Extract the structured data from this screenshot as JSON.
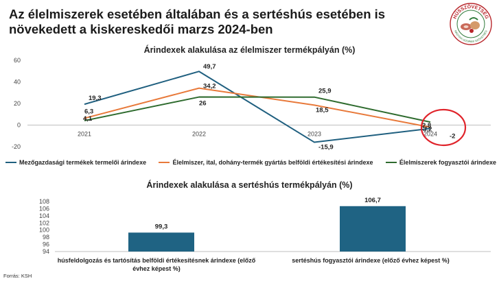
{
  "page": {
    "title": "Az élelmiszerek esetében általában és a sertéshús esetében is növekedett a kiskereskedői marzs 2024-ben",
    "source": "Forrás: KSH"
  },
  "logo": {
    "top_text": "HÚSSZÖVETSÉG",
    "bottom_text": "MAGYAR HÚSIPARI SZÖVETSÉG",
    "icon": "meat-industry-seal-icon"
  },
  "chart_data": [
    {
      "type": "line",
      "title": "Árindexek alakulása az élelmiszer termékpályán (%)",
      "categories": [
        "2021",
        "2022",
        "2023",
        "2024"
      ],
      "ylim": [
        -20,
        60
      ],
      "yticks": [
        "-20",
        "0",
        "20",
        "40",
        "60"
      ],
      "grid": false,
      "legend": "bottom",
      "series": [
        {
          "name": "Mezőgazdasági termékek termelői árindexe",
          "color": "#1f5f7f",
          "values": [
            19.3,
            49.7,
            -15.9,
            -3.2
          ],
          "labels": [
            "19,3",
            "49,7",
            "-15,9",
            "-3,2"
          ]
        },
        {
          "name": "Élelmiszer, ital, dohány-termék gyártás belföldi értékesítési árindexe",
          "color": "#e8793a",
          "values": [
            6.3,
            34.2,
            18.5,
            -2
          ],
          "labels": [
            "6,3",
            "34,2",
            "18,5",
            "-2"
          ]
        },
        {
          "name": "Élelmiszerek fogyasztói árindexe",
          "color": "#2e6b2e",
          "values": [
            4.1,
            26,
            25.9,
            2.8
          ],
          "labels": [
            "4,1",
            "26",
            "25,9",
            "2,8"
          ]
        }
      ],
      "annotation": "red circle around 2024 values",
      "annotation_color": "#e0242b"
    },
    {
      "type": "bar",
      "title": "Árindexek alakulása a sertéshús termékpályán (%)",
      "categories": [
        "húsfeldolgozás és tartósítás belföldi értékesítésnek árindexe (előző évhez képest %)",
        "sertéshús fogyasztói árindexe (előző évhez képest %)"
      ],
      "values": [
        99.3,
        106.7
      ],
      "labels": [
        "99,3",
        "106,7"
      ],
      "ylim": [
        94,
        108
      ],
      "yticks": [
        "94",
        "96",
        "98",
        "100",
        "102",
        "104",
        "106",
        "108"
      ],
      "color": "#1f6383"
    }
  ]
}
